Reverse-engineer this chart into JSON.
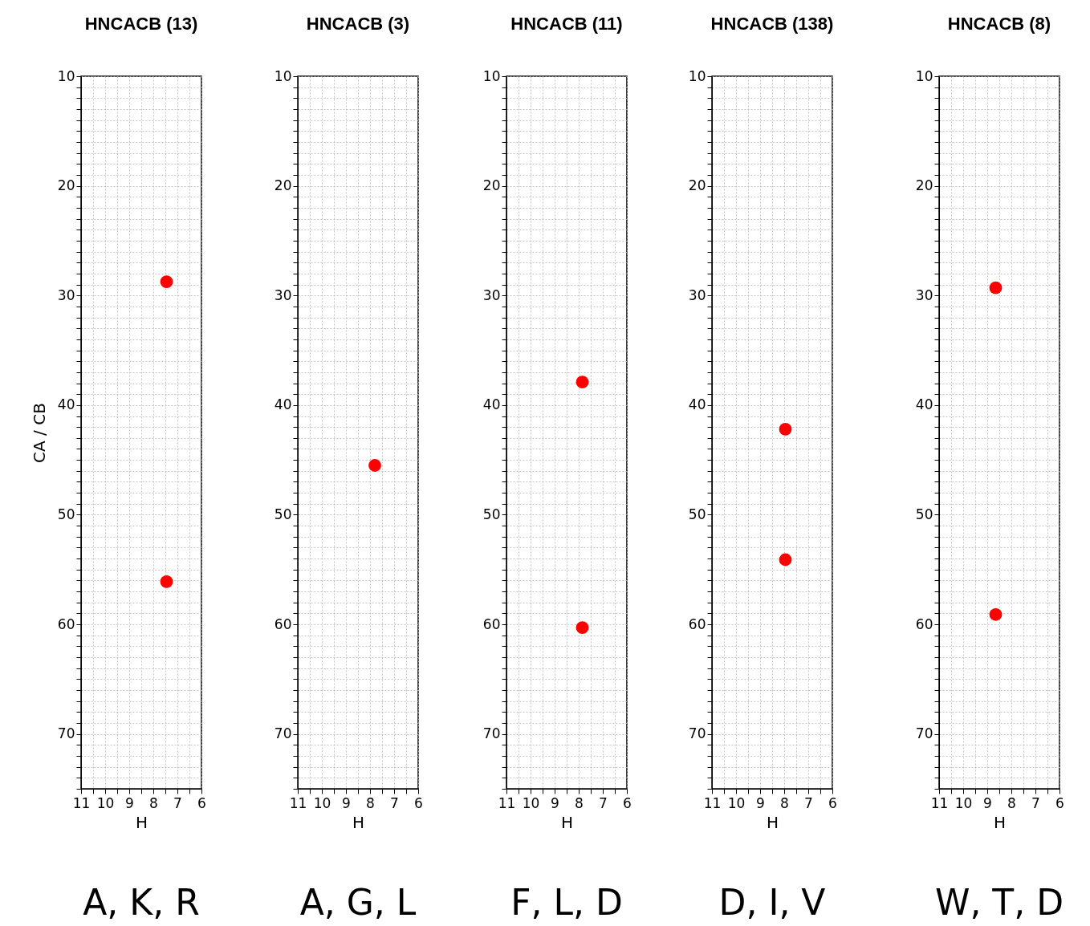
{
  "chart_data": [
    {
      "type": "scatter",
      "title": "HNCACB (13)",
      "xlabel": "H",
      "ylabel": "CA / CB",
      "x": [
        7.45,
        7.45
      ],
      "values": [
        28.75,
        56.1
      ],
      "color": "#ff0000",
      "marker": "circle",
      "grid": true,
      "xlim": [
        11,
        6
      ],
      "ylim": [
        75,
        10
      ],
      "xticks": [
        11,
        {
          "value": 10.5,
          "label": null
        },
        10,
        {
          "value": 9.5,
          "label": null
        },
        9,
        {
          "value": 8.5,
          "label": null
        },
        8,
        {
          "value": 7.5,
          "label": null
        },
        7,
        {
          "value": 6.5,
          "label": null
        },
        6
      ],
      "yticks": [
        10,
        {
          "value": 11,
          "label": null
        },
        {
          "value": 12,
          "label": null
        },
        {
          "value": 13,
          "label": null
        },
        {
          "value": 14,
          "label": null
        },
        {
          "value": 15,
          "label": null
        },
        {
          "value": 16,
          "label": null
        },
        {
          "value": 17,
          "label": null
        },
        {
          "value": 18,
          "label": null
        },
        {
          "value": 19,
          "label": null
        },
        20,
        {
          "value": 21,
          "label": null
        },
        {
          "value": 22,
          "label": null
        },
        {
          "value": 23,
          "label": null
        },
        {
          "value": 24,
          "label": null
        },
        {
          "value": 25,
          "label": null
        },
        {
          "value": 26,
          "label": null
        },
        {
          "value": 27,
          "label": null
        },
        {
          "value": 28,
          "label": null
        },
        {
          "value": 29,
          "label": null
        },
        30,
        {
          "value": 31,
          "label": null
        },
        {
          "value": 32,
          "label": null
        },
        {
          "value": 33,
          "label": null
        },
        {
          "value": 34,
          "label": null
        },
        {
          "value": 35,
          "label": null
        },
        {
          "value": 36,
          "label": null
        },
        {
          "value": 37,
          "label": null
        },
        {
          "value": 38,
          "label": null
        },
        {
          "value": 39,
          "label": null
        },
        40,
        {
          "value": 41,
          "label": null
        },
        {
          "value": 42,
          "label": null
        },
        {
          "value": 43,
          "label": null
        },
        {
          "value": 44,
          "label": null
        },
        {
          "value": 45,
          "label": null
        },
        {
          "value": 46,
          "label": null
        },
        {
          "value": 47,
          "label": null
        },
        {
          "value": 48,
          "label": null
        },
        {
          "value": 49,
          "label": null
        },
        50,
        {
          "value": 51,
          "label": null
        },
        {
          "value": 52,
          "label": null
        },
        {
          "value": 53,
          "label": null
        },
        {
          "value": 54,
          "label": null
        },
        {
          "value": 55,
          "label": null
        },
        {
          "value": 56,
          "label": null
        },
        {
          "value": 57,
          "label": null
        },
        {
          "value": 58,
          "label": null
        },
        {
          "value": 59,
          "label": null
        },
        60,
        {
          "value": 61,
          "label": null
        },
        {
          "value": 62,
          "label": null
        },
        {
          "value": 63,
          "label": null
        },
        {
          "value": 64,
          "label": null
        },
        {
          "value": 65,
          "label": null
        },
        {
          "value": 66,
          "label": null
        },
        {
          "value": 67,
          "label": null
        },
        {
          "value": 68,
          "label": null
        },
        {
          "value": 69,
          "label": null
        },
        70,
        {
          "value": 71,
          "label": null
        },
        {
          "value": 72,
          "label": null
        },
        {
          "value": 73,
          "label": null
        },
        {
          "value": 74,
          "label": null
        },
        {
          "value": 75,
          "label": null
        }
      ],
      "annotations": [
        "A, K, R"
      ]
    },
    {
      "type": "scatter",
      "title": "HNCACB (3)",
      "xlabel": "H",
      "x": [
        7.8
      ],
      "values": [
        45.5
      ],
      "color": "#ff0000",
      "marker": "circle",
      "grid": true,
      "xlim": [
        11,
        6
      ],
      "ylim": [
        75,
        10
      ],
      "xticks": [
        11,
        {
          "value": 10.5,
          "label": null
        },
        10,
        {
          "value": 9.5,
          "label": null
        },
        9,
        {
          "value": 8.5,
          "label": null
        },
        8,
        {
          "value": 7.5,
          "label": null
        },
        7,
        {
          "value": 6.5,
          "label": null
        },
        6
      ],
      "yticks": [
        10,
        {
          "value": 11,
          "label": null
        },
        {
          "value": 12,
          "label": null
        },
        {
          "value": 13,
          "label": null
        },
        {
          "value": 14,
          "label": null
        },
        {
          "value": 15,
          "label": null
        },
        {
          "value": 16,
          "label": null
        },
        {
          "value": 17,
          "label": null
        },
        {
          "value": 18,
          "label": null
        },
        {
          "value": 19,
          "label": null
        },
        20,
        {
          "value": 21,
          "label": null
        },
        {
          "value": 22,
          "label": null
        },
        {
          "value": 23,
          "label": null
        },
        {
          "value": 24,
          "label": null
        },
        {
          "value": 25,
          "label": null
        },
        {
          "value": 26,
          "label": null
        },
        {
          "value": 27,
          "label": null
        },
        {
          "value": 28,
          "label": null
        },
        {
          "value": 29,
          "label": null
        },
        30,
        {
          "value": 31,
          "label": null
        },
        {
          "value": 32,
          "label": null
        },
        {
          "value": 33,
          "label": null
        },
        {
          "value": 34,
          "label": null
        },
        {
          "value": 35,
          "label": null
        },
        {
          "value": 36,
          "label": null
        },
        {
          "value": 37,
          "label": null
        },
        {
          "value": 38,
          "label": null
        },
        {
          "value": 39,
          "label": null
        },
        40,
        {
          "value": 41,
          "label": null
        },
        {
          "value": 42,
          "label": null
        },
        {
          "value": 43,
          "label": null
        },
        {
          "value": 44,
          "label": null
        },
        {
          "value": 45,
          "label": null
        },
        {
          "value": 46,
          "label": null
        },
        {
          "value": 47,
          "label": null
        },
        {
          "value": 48,
          "label": null
        },
        {
          "value": 49,
          "label": null
        },
        50,
        {
          "value": 51,
          "label": null
        },
        {
          "value": 52,
          "label": null
        },
        {
          "value": 53,
          "label": null
        },
        {
          "value": 54,
          "label": null
        },
        {
          "value": 55,
          "label": null
        },
        {
          "value": 56,
          "label": null
        },
        {
          "value": 57,
          "label": null
        },
        {
          "value": 58,
          "label": null
        },
        {
          "value": 59,
          "label": null
        },
        60,
        {
          "value": 61,
          "label": null
        },
        {
          "value": 62,
          "label": null
        },
        {
          "value": 63,
          "label": null
        },
        {
          "value": 64,
          "label": null
        },
        {
          "value": 65,
          "label": null
        },
        {
          "value": 66,
          "label": null
        },
        {
          "value": 67,
          "label": null
        },
        {
          "value": 68,
          "label": null
        },
        {
          "value": 69,
          "label": null
        },
        70,
        {
          "value": 71,
          "label": null
        },
        {
          "value": 72,
          "label": null
        },
        {
          "value": 73,
          "label": null
        },
        {
          "value": 74,
          "label": null
        },
        {
          "value": 75,
          "label": null
        }
      ],
      "annotations": [
        "A, G, L"
      ]
    },
    {
      "type": "scatter",
      "title": "HNCACB (11)",
      "xlabel": "H",
      "x": [
        7.85,
        7.85
      ],
      "values": [
        37.9,
        60.3
      ],
      "color": "#ff0000",
      "marker": "circle",
      "grid": true,
      "xlim": [
        11,
        6
      ],
      "ylim": [
        75,
        10
      ],
      "xticks": [
        11,
        {
          "value": 10.5,
          "label": null
        },
        10,
        {
          "value": 9.5,
          "label": null
        },
        9,
        {
          "value": 8.5,
          "label": null
        },
        8,
        {
          "value": 7.5,
          "label": null
        },
        7,
        {
          "value": 6.5,
          "label": null
        },
        6
      ],
      "yticks": [
        10,
        {
          "value": 11,
          "label": null
        },
        {
          "value": 12,
          "label": null
        },
        {
          "value": 13,
          "label": null
        },
        {
          "value": 14,
          "label": null
        },
        {
          "value": 15,
          "label": null
        },
        {
          "value": 16,
          "label": null
        },
        {
          "value": 17,
          "label": null
        },
        {
          "value": 18,
          "label": null
        },
        {
          "value": 19,
          "label": null
        },
        20,
        {
          "value": 21,
          "label": null
        },
        {
          "value": 22,
          "label": null
        },
        {
          "value": 23,
          "label": null
        },
        {
          "value": 24,
          "label": null
        },
        {
          "value": 25,
          "label": null
        },
        {
          "value": 26,
          "label": null
        },
        {
          "value": 27,
          "label": null
        },
        {
          "value": 28,
          "label": null
        },
        {
          "value": 29,
          "label": null
        },
        30,
        {
          "value": 31,
          "label": null
        },
        {
          "value": 32,
          "label": null
        },
        {
          "value": 33,
          "label": null
        },
        {
          "value": 34,
          "label": null
        },
        {
          "value": 35,
          "label": null
        },
        {
          "value": 36,
          "label": null
        },
        {
          "value": 37,
          "label": null
        },
        {
          "value": 38,
          "label": null
        },
        {
          "value": 39,
          "label": null
        },
        40,
        {
          "value": 41,
          "label": null
        },
        {
          "value": 42,
          "label": null
        },
        {
          "value": 43,
          "label": null
        },
        {
          "value": 44,
          "label": null
        },
        {
          "value": 45,
          "label": null
        },
        {
          "value": 46,
          "label": null
        },
        {
          "value": 47,
          "label": null
        },
        {
          "value": 48,
          "label": null
        },
        {
          "value": 49,
          "label": null
        },
        50,
        {
          "value": 51,
          "label": null
        },
        {
          "value": 52,
          "label": null
        },
        {
          "value": 53,
          "label": null
        },
        {
          "value": 54,
          "label": null
        },
        {
          "value": 55,
          "label": null
        },
        {
          "value": 56,
          "label": null
        },
        {
          "value": 57,
          "label": null
        },
        {
          "value": 58,
          "label": null
        },
        {
          "value": 59,
          "label": null
        },
        60,
        {
          "value": 61,
          "label": null
        },
        {
          "value": 62,
          "label": null
        },
        {
          "value": 63,
          "label": null
        },
        {
          "value": 64,
          "label": null
        },
        {
          "value": 65,
          "label": null
        },
        {
          "value": 66,
          "label": null
        },
        {
          "value": 67,
          "label": null
        },
        {
          "value": 68,
          "label": null
        },
        {
          "value": 69,
          "label": null
        },
        70,
        {
          "value": 71,
          "label": null
        },
        {
          "value": 72,
          "label": null
        },
        {
          "value": 73,
          "label": null
        },
        {
          "value": 74,
          "label": null
        },
        {
          "value": 75,
          "label": null
        }
      ],
      "annotations": [
        "F, L, D"
      ]
    },
    {
      "type": "scatter",
      "title": "HNCACB (138)",
      "xlabel": "H",
      "x": [
        7.95,
        7.95
      ],
      "values": [
        42.2,
        54.1
      ],
      "color": "#ff0000",
      "marker": "circle",
      "grid": true,
      "xlim": [
        11,
        6
      ],
      "ylim": [
        75,
        10
      ],
      "xticks": [
        11,
        {
          "value": 10.5,
          "label": null
        },
        10,
        {
          "value": 9.5,
          "label": null
        },
        9,
        {
          "value": 8.5,
          "label": null
        },
        8,
        {
          "value": 7.5,
          "label": null
        },
        7,
        {
          "value": 6.5,
          "label": null
        },
        6
      ],
      "yticks": [
        10,
        {
          "value": 11,
          "label": null
        },
        {
          "value": 12,
          "label": null
        },
        {
          "value": 13,
          "label": null
        },
        {
          "value": 14,
          "label": null
        },
        {
          "value": 15,
          "label": null
        },
        {
          "value": 16,
          "label": null
        },
        {
          "value": 17,
          "label": null
        },
        {
          "value": 18,
          "label": null
        },
        {
          "value": 19,
          "label": null
        },
        20,
        {
          "value": 21,
          "label": null
        },
        {
          "value": 22,
          "label": null
        },
        {
          "value": 23,
          "label": null
        },
        {
          "value": 24,
          "label": null
        },
        {
          "value": 25,
          "label": null
        },
        {
          "value": 26,
          "label": null
        },
        {
          "value": 27,
          "label": null
        },
        {
          "value": 28,
          "label": null
        },
        {
          "value": 29,
          "label": null
        },
        30,
        {
          "value": 31,
          "label": null
        },
        {
          "value": 32,
          "label": null
        },
        {
          "value": 33,
          "label": null
        },
        {
          "value": 34,
          "label": null
        },
        {
          "value": 35,
          "label": null
        },
        {
          "value": 36,
          "label": null
        },
        {
          "value": 37,
          "label": null
        },
        {
          "value": 38,
          "label": null
        },
        {
          "value": 39,
          "label": null
        },
        40,
        {
          "value": 41,
          "label": null
        },
        {
          "value": 42,
          "label": null
        },
        {
          "value": 43,
          "label": null
        },
        {
          "value": 44,
          "label": null
        },
        {
          "value": 45,
          "label": null
        },
        {
          "value": 46,
          "label": null
        },
        {
          "value": 47,
          "label": null
        },
        {
          "value": 48,
          "label": null
        },
        {
          "value": 49,
          "label": null
        },
        50,
        {
          "value": 51,
          "label": null
        },
        {
          "value": 52,
          "label": null
        },
        {
          "value": 53,
          "label": null
        },
        {
          "value": 54,
          "label": null
        },
        {
          "value": 55,
          "label": null
        },
        {
          "value": 56,
          "label": null
        },
        {
          "value": 57,
          "label": null
        },
        {
          "value": 58,
          "label": null
        },
        {
          "value": 59,
          "label": null
        },
        60,
        {
          "value": 61,
          "label": null
        },
        {
          "value": 62,
          "label": null
        },
        {
          "value": 63,
          "label": null
        },
        {
          "value": 64,
          "label": null
        },
        {
          "value": 65,
          "label": null
        },
        {
          "value": 66,
          "label": null
        },
        {
          "value": 67,
          "label": null
        },
        {
          "value": 68,
          "label": null
        },
        {
          "value": 69,
          "label": null
        },
        70,
        {
          "value": 71,
          "label": null
        },
        {
          "value": 72,
          "label": null
        },
        {
          "value": 73,
          "label": null
        },
        {
          "value": 74,
          "label": null
        },
        {
          "value": 75,
          "label": null
        }
      ],
      "annotations": [
        "D, I, V"
      ]
    },
    {
      "type": "scatter",
      "title": "HNCACB (8)",
      "xlabel": "H",
      "x": [
        8.65,
        8.65
      ],
      "values": [
        29.3,
        59.1
      ],
      "color": "#ff0000",
      "marker": "circle",
      "grid": true,
      "xlim": [
        11,
        6
      ],
      "ylim": [
        75,
        10
      ],
      "xticks": [
        11,
        {
          "value": 10.5,
          "label": null
        },
        10,
        {
          "value": 9.5,
          "label": null
        },
        9,
        {
          "value": 8.5,
          "label": null
        },
        8,
        {
          "value": 7.5,
          "label": null
        },
        7,
        {
          "value": 6.5,
          "label": null
        },
        6
      ],
      "yticks": [
        10,
        {
          "value": 11,
          "label": null
        },
        {
          "value": 12,
          "label": null
        },
        {
          "value": 13,
          "label": null
        },
        {
          "value": 14,
          "label": null
        },
        {
          "value": 15,
          "label": null
        },
        {
          "value": 16,
          "label": null
        },
        {
          "value": 17,
          "label": null
        },
        {
          "value": 18,
          "label": null
        },
        {
          "value": 19,
          "label": null
        },
        20,
        {
          "value": 21,
          "label": null
        },
        {
          "value": 22,
          "label": null
        },
        {
          "value": 23,
          "label": null
        },
        {
          "value": 24,
          "label": null
        },
        {
          "value": 25,
          "label": null
        },
        {
          "value": 26,
          "label": null
        },
        {
          "value": 27,
          "label": null
        },
        {
          "value": 28,
          "label": null
        },
        {
          "value": 29,
          "label": null
        },
        30,
        {
          "value": 31,
          "label": null
        },
        {
          "value": 32,
          "label": null
        },
        {
          "value": 33,
          "label": null
        },
        {
          "value": 34,
          "label": null
        },
        {
          "value": 35,
          "label": null
        },
        {
          "value": 36,
          "label": null
        },
        {
          "value": 37,
          "label": null
        },
        {
          "value": 38,
          "label": null
        },
        {
          "value": 39,
          "label": null
        },
        40,
        {
          "value": 41,
          "label": null
        },
        {
          "value": 42,
          "label": null
        },
        {
          "value": 43,
          "label": null
        },
        {
          "value": 44,
          "label": null
        },
        {
          "value": 45,
          "label": null
        },
        {
          "value": 46,
          "label": null
        },
        {
          "value": 47,
          "label": null
        },
        {
          "value": 48,
          "label": null
        },
        {
          "value": 49,
          "label": null
        },
        50,
        {
          "value": 51,
          "label": null
        },
        {
          "value": 52,
          "label": null
        },
        {
          "value": 53,
          "label": null
        },
        {
          "value": 54,
          "label": null
        },
        {
          "value": 55,
          "label": null
        },
        {
          "value": 56,
          "label": null
        },
        {
          "value": 57,
          "label": null
        },
        {
          "value": 58,
          "label": null
        },
        {
          "value": 59,
          "label": null
        },
        60,
        {
          "value": 61,
          "label": null
        },
        {
          "value": 62,
          "label": null
        },
        {
          "value": 63,
          "label": null
        },
        {
          "value": 64,
          "label": null
        },
        {
          "value": 65,
          "label": null
        },
        {
          "value": 66,
          "label": null
        },
        {
          "value": 67,
          "label": null
        },
        {
          "value": 68,
          "label": null
        },
        {
          "value": 69,
          "label": null
        },
        70,
        {
          "value": 71,
          "label": null
        },
        {
          "value": 72,
          "label": null
        },
        {
          "value": 73,
          "label": null
        },
        {
          "value": 74,
          "label": null
        },
        {
          "value": 75,
          "label": null
        }
      ],
      "annotations": [
        "W, T, D"
      ]
    }
  ]
}
